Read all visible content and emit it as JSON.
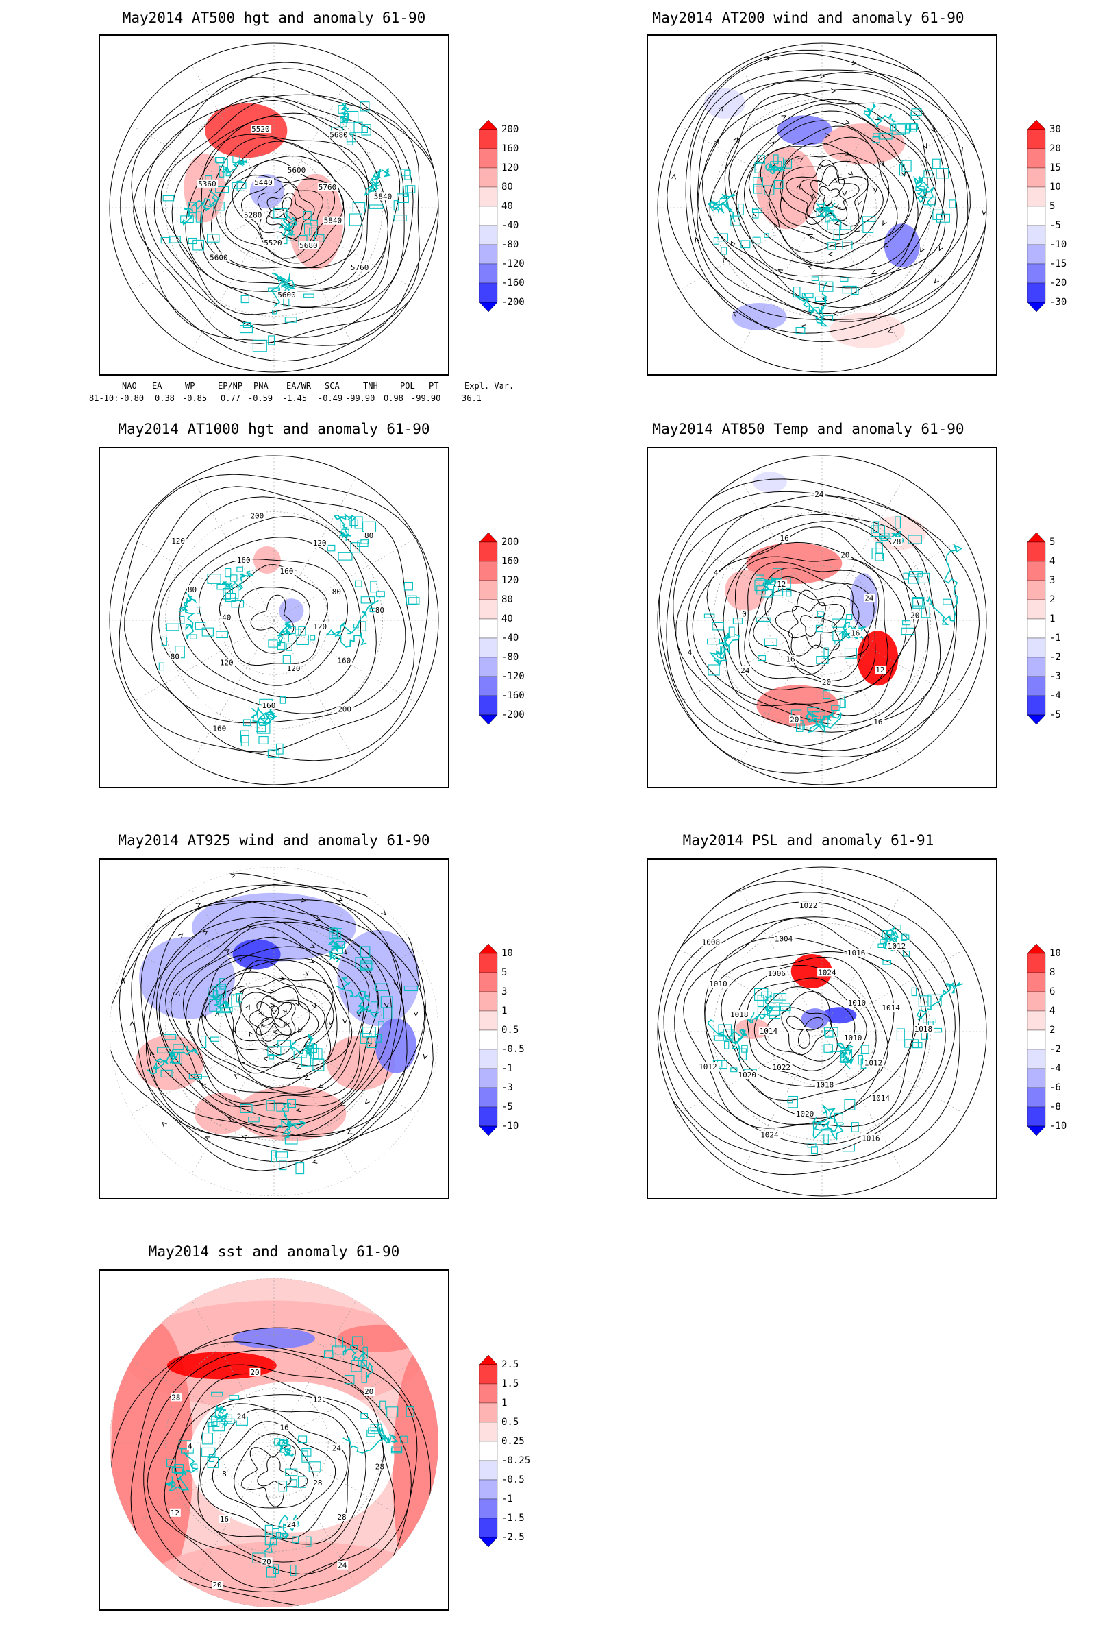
{
  "panels": [
    {
      "id": "p500",
      "title": "May2014 AT500 hgt and anomaly 61-90",
      "contour_labels": [
        "5840",
        "5760",
        "5680",
        "5600",
        "5520",
        "5600",
        "5280",
        "5360",
        "5440",
        "5520",
        "5600",
        "5680",
        "5760",
        "5840"
      ],
      "colorbar": {
        "labels": [
          "200",
          "160",
          "120",
          "80",
          "40",
          "-40",
          "-80",
          "-120",
          "-160",
          "-200"
        ],
        "colors": [
          "#ff0000",
          "#ff4040",
          "#ff8080",
          "#ffb4b4",
          "#ffe0e0",
          "#ffffff",
          "#e0e0ff",
          "#b4b4ff",
          "#8080ff",
          "#4040ff",
          "#0000ff"
        ]
      }
    },
    {
      "id": "p200",
      "title": "May2014 AT200 wind and anomaly 61-90",
      "colorbar": {
        "labels": [
          "30",
          "20",
          "15",
          "10",
          "5",
          "-5",
          "-10",
          "-15",
          "-20",
          "-30"
        ],
        "colors": [
          "#ff0000",
          "#ff4040",
          "#ff8080",
          "#ffb4b4",
          "#ffe0e0",
          "#ffffff",
          "#e0e0ff",
          "#b4b4ff",
          "#8080ff",
          "#4040ff",
          "#0000ff"
        ]
      }
    },
    {
      "id": "p1000",
      "title": "May2014 AT1000 hgt and anomaly 61-90",
      "contour_labels": [
        "120",
        "160",
        "200",
        "120",
        "160",
        "160",
        "120",
        "80",
        "40",
        "80",
        "120",
        "160",
        "200",
        "160",
        "120",
        "80",
        "80",
        "80"
      ],
      "colorbar": {
        "labels": [
          "200",
          "160",
          "120",
          "80",
          "40",
          "-40",
          "-80",
          "-120",
          "-160",
          "-200"
        ],
        "colors": [
          "#ff0000",
          "#ff4040",
          "#ff8080",
          "#ffb4b4",
          "#ffe0e0",
          "#ffffff",
          "#e0e0ff",
          "#b4b4ff",
          "#8080ff",
          "#4040ff",
          "#0000ff"
        ]
      }
    },
    {
      "id": "p850",
      "title": "May2014 AT850 Temp and anomaly 61-90",
      "contour_labels": [
        "16",
        "12",
        "16",
        "20",
        "20",
        "16",
        "24",
        "4",
        "0",
        "4",
        "12",
        "16",
        "24",
        "20",
        "28",
        "24",
        "20"
      ],
      "colorbar": {
        "labels": [
          "5",
          "4",
          "3",
          "2",
          "1",
          "-1",
          "-2",
          "-3",
          "-4",
          "-5"
        ],
        "colors": [
          "#ff0000",
          "#ff4040",
          "#ff8080",
          "#ffb4b4",
          "#ffe0e0",
          "#ffffff",
          "#e0e0ff",
          "#b4b4ff",
          "#8080ff",
          "#4040ff",
          "#0000ff"
        ]
      }
    },
    {
      "id": "p925",
      "title": "May2014 AT925 wind and anomaly 61-90",
      "colorbar": {
        "labels": [
          "10",
          "5",
          "3",
          "1",
          "0.5",
          "-0.5",
          "-1",
          "-3",
          "-5",
          "-10"
        ],
        "colors": [
          "#ff0000",
          "#ff4040",
          "#ff8080",
          "#ffb4b4",
          "#ffe0e0",
          "#ffffff",
          "#e0e0ff",
          "#b4b4ff",
          "#8080ff",
          "#4040ff",
          "#0000ff"
        ]
      }
    },
    {
      "id": "ppsl",
      "title": "May2014 PSL and anomaly 61-91",
      "contour_labels": [
        "1010",
        "1012",
        "1014",
        "1016",
        "1018",
        "1020",
        "1024",
        "1022",
        "1020",
        "1012",
        "1014",
        "1018",
        "1010",
        "1008",
        "1006",
        "1004",
        "1022",
        "1024",
        "1016",
        "1012",
        "1010",
        "1014",
        "1018"
      ],
      "colorbar": {
        "labels": [
          "10",
          "8",
          "6",
          "4",
          "2",
          "-2",
          "-4",
          "-6",
          "-8",
          "-10"
        ],
        "colors": [
          "#ff0000",
          "#ff4040",
          "#ff8080",
          "#ffb4b4",
          "#ffe0e0",
          "#ffffff",
          "#e0e0ff",
          "#b4b4ff",
          "#8080ff",
          "#4040ff",
          "#0000ff"
        ]
      }
    },
    {
      "id": "psst",
      "title": "May2014 sst and anomaly 61-90",
      "contour_labels": [
        "28",
        "28",
        "24",
        "24",
        "20",
        "20",
        "16",
        "12",
        "8",
        "4",
        "28",
        "24",
        "20",
        "16",
        "12",
        "20",
        "24",
        "28"
      ],
      "colorbar": {
        "labels": [
          "2.5",
          "1.5",
          "1",
          "0.5",
          "0.25",
          "-0.25",
          "-0.5",
          "-1",
          "-1.5",
          "-2.5"
        ],
        "colors": [
          "#ff0000",
          "#ff4040",
          "#ff8080",
          "#ffb4b4",
          "#ffe0e0",
          "#ffffff",
          "#e0e0ff",
          "#b4b4ff",
          "#8080ff",
          "#4040ff",
          "#0000ff"
        ]
      }
    }
  ],
  "indices": {
    "headers": [
      "NAO",
      "EA",
      "WP",
      "EP/NP",
      "PNA",
      "EA/WR",
      "SCA",
      "TNH",
      "POL",
      "PT",
      "Expl. Var."
    ],
    "row_label": "81-10:",
    "values": [
      "-0.80",
      "0.38",
      "-0.85",
      "0.77",
      "-0.59",
      "-1.45",
      "-0.49",
      "-99.90",
      "0.98",
      "-99.90",
      "36.1"
    ]
  },
  "colors": {
    "coast": "#00bfbf",
    "contour": "#000000",
    "grid": "#999999"
  }
}
